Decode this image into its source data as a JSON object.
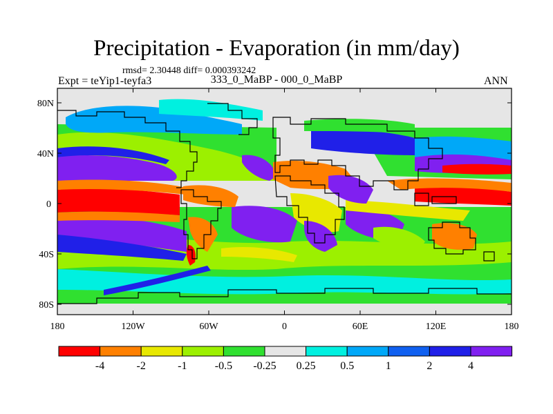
{
  "title": "Precipitation - Evaporation (in mm/day)",
  "stats": "rmsd= 2.30448 diff= 0.000393242",
  "experiment": "Expt = teYip1-teyfa3",
  "period": "333_0_MaBP - 000_0_MaBP",
  "season": "ANN",
  "axes": {
    "lon_labels": [
      "180",
      "120W",
      "60W",
      "0",
      "60E",
      "120E",
      "180"
    ],
    "lon_values": [
      -180,
      -120,
      -60,
      0,
      60,
      120,
      180
    ],
    "lat_labels": [
      "80N",
      "40N",
      "0",
      "40S",
      "80S"
    ],
    "lat_values": [
      80,
      40,
      0,
      -40,
      -80
    ],
    "lon_range": [
      -180,
      180
    ],
    "lat_range": [
      -90,
      90
    ]
  },
  "colorbar": {
    "levels": [
      "-4",
      "-2",
      "-1",
      "-0.5",
      "-0.25",
      "0.25",
      "0.5",
      "1",
      "2",
      "4"
    ],
    "colors": [
      "#ff0000",
      "#ff8000",
      "#e8e800",
      "#9cf000",
      "#30e030",
      "#e6e6e6",
      "#00f0e0",
      "#00a8f8",
      "#1060f0",
      "#2020e8",
      "#8020f0"
    ]
  },
  "map_colors": {
    "background": "#e6e6e6",
    "land_outline": "#000000"
  }
}
